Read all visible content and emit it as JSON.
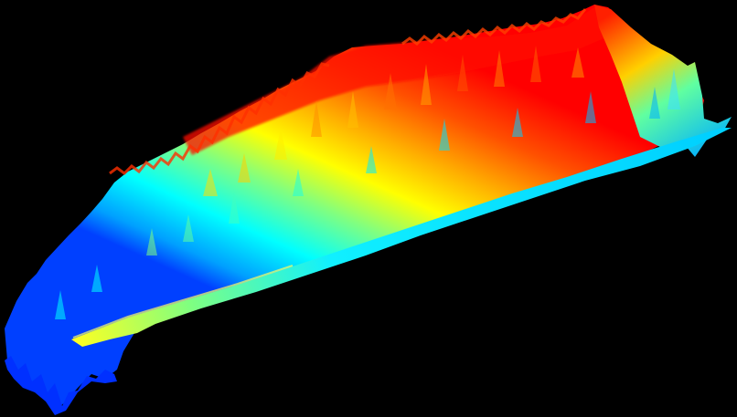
{
  "scene": {
    "background": "#000000",
    "subject": "surface-plot-render",
    "colormap": "jet",
    "colormap_stops": [
      "#0000ff",
      "#0080ff",
      "#00ffff",
      "#80ff80",
      "#ffff00",
      "#ff8000",
      "#ff0000"
    ],
    "has_title": false,
    "has_axes": false,
    "has_colorbar": false
  }
}
